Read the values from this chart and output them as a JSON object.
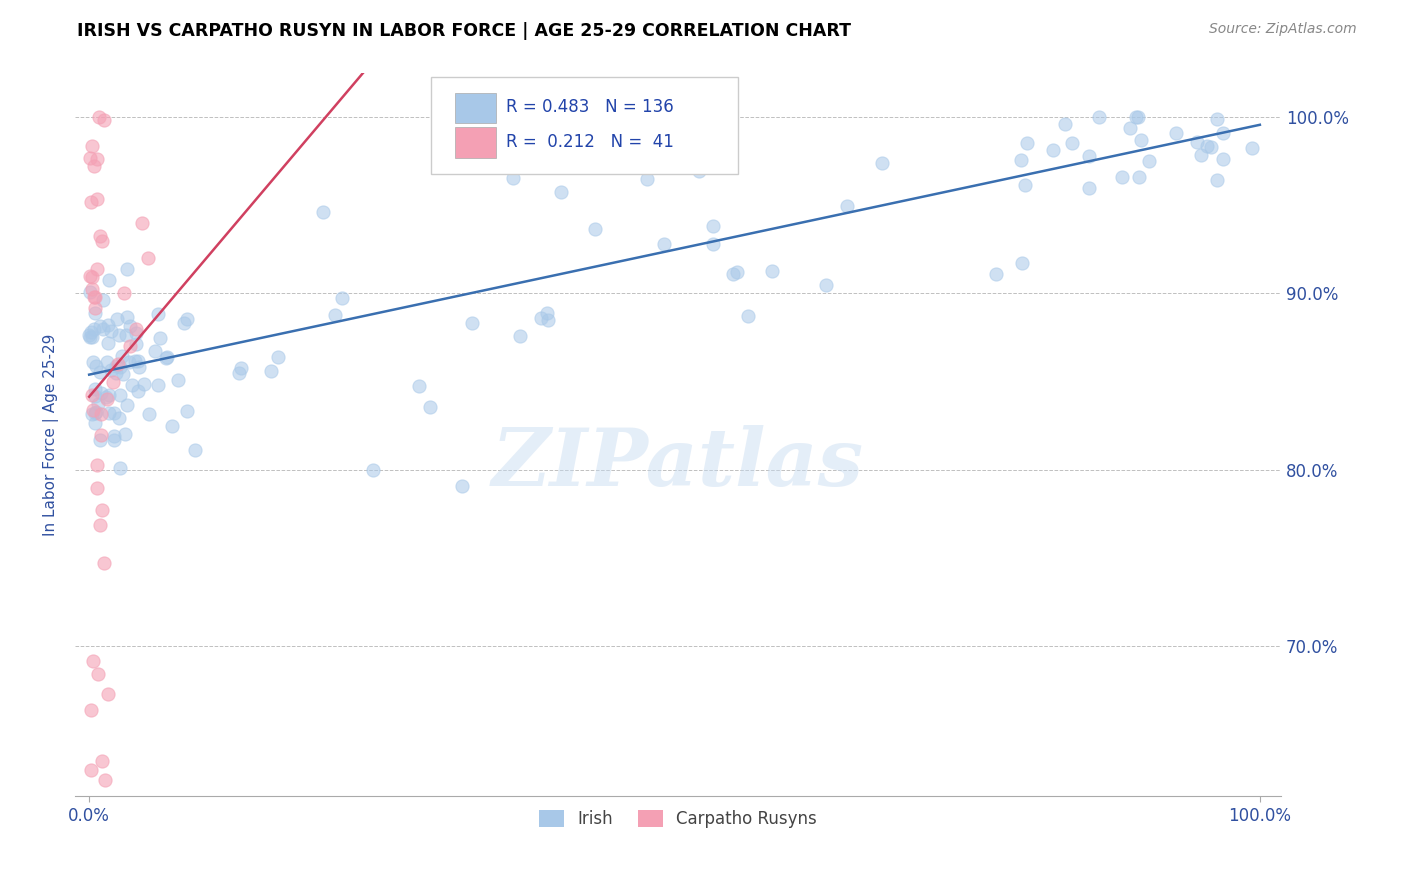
{
  "title": "IRISH VS CARPATHO RUSYN IN LABOR FORCE | AGE 25-29 CORRELATION CHART",
  "source": "Source: ZipAtlas.com",
  "ylabel": "In Labor Force | Age 25-29",
  "xmin": 0.0,
  "xmax": 1.0,
  "ymin": 0.615,
  "ymax": 1.025,
  "yticks": [
    0.7,
    0.8,
    0.9,
    1.0
  ],
  "ytick_labels": [
    "70.0%",
    "80.0%",
    "90.0%",
    "100.0%"
  ],
  "xtick_labels": [
    "0.0%",
    "100.0%"
  ],
  "irish_R": 0.483,
  "irish_N": 136,
  "rusyn_R": 0.212,
  "rusyn_N": 41,
  "irish_color": "#a8c8e8",
  "rusyn_color": "#f4a0b4",
  "irish_line_color": "#3a6fb0",
  "rusyn_line_color": "#d04060",
  "legend_irish_label": "Irish",
  "legend_rusyn_label": "Carpatho Rusyns",
  "watermark": "ZIPatlas",
  "background_color": "#ffffff",
  "grid_color": "#c0c0c0",
  "title_color": "#000000",
  "axis_label_color": "#3050a0",
  "tick_label_color": "#3050a0",
  "irish_seed": 12345,
  "rusyn_seed": 67890
}
